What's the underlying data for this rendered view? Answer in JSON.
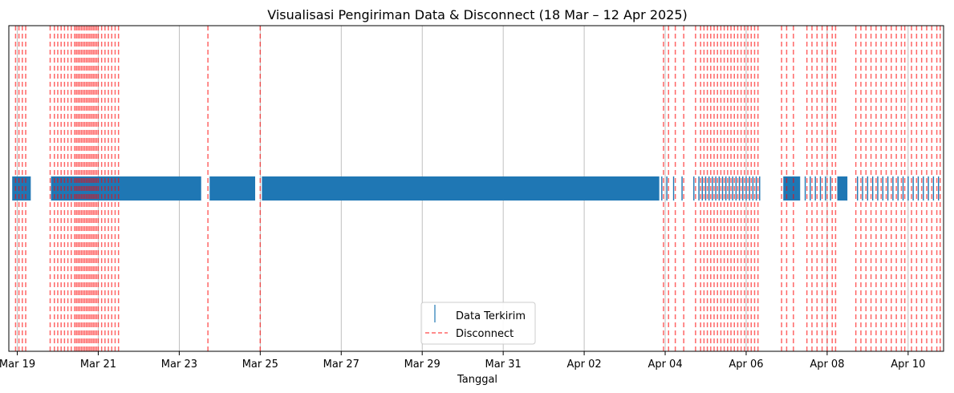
{
  "chart_data": {
    "type": "event-timeline",
    "title": "Visualisasi Pengiriman Data & Disconnect (18 Mar – 12 Apr 2025)",
    "xlabel": "Tanggal",
    "ylabel": "",
    "x_axis": {
      "type": "date",
      "range": [
        "2025-03-18T19:00",
        "2025-04-10T21:00"
      ],
      "ticks": [
        {
          "date": "2025-03-19",
          "label": "Mar 19"
        },
        {
          "date": "2025-03-21",
          "label": "Mar 21"
        },
        {
          "date": "2025-03-23",
          "label": "Mar 23"
        },
        {
          "date": "2025-03-25",
          "label": "Mar 25"
        },
        {
          "date": "2025-03-27",
          "label": "Mar 27"
        },
        {
          "date": "2025-03-29",
          "label": "Mar 29"
        },
        {
          "date": "2025-03-31",
          "label": "Mar 31"
        },
        {
          "date": "2025-04-02",
          "label": "Apr 02"
        },
        {
          "date": "2025-04-04",
          "label": "Apr 04"
        },
        {
          "date": "2025-04-06",
          "label": "Apr 06"
        },
        {
          "date": "2025-04-08",
          "label": "Apr 08"
        },
        {
          "date": "2025-04-10",
          "label": "Apr 10"
        }
      ]
    },
    "grid": {
      "x": true,
      "y": false
    },
    "legend": {
      "placement": "lower center",
      "entries": [
        {
          "label": "Data Terkirim",
          "marker": "vertical-line",
          "color": "#1f77b4"
        },
        {
          "label": "Disconnect",
          "marker": "dashed-line",
          "color": "#ff0000"
        }
      ]
    },
    "series": [
      {
        "name": "Data Terkirim",
        "color": "#1f77b4",
        "mark": "vertical event marker",
        "active_periods": [
          [
            "2025-03-18T21:00",
            "2025-03-19T08:00"
          ],
          [
            "2025-03-19T20:00",
            "2025-03-23T13:00"
          ],
          [
            "2025-03-23T18:00",
            "2025-03-24T21:00"
          ],
          [
            "2025-03-25T01:00",
            "2025-04-03T20:30"
          ],
          [
            "2025-04-06T22:00",
            "2025-04-07T08:00"
          ],
          [
            "2025-04-08T06:00",
            "2025-04-08T12:00"
          ]
        ],
        "sparse_points": [
          "2025-04-03T22:00",
          "2025-04-04T01:00",
          "2025-04-04T05:00",
          "2025-04-04T10:00",
          "2025-04-04T17:00",
          "2025-04-04T20:00",
          "2025-04-04T22:00",
          "2025-04-05T00:00",
          "2025-04-05T02:00",
          "2025-04-05T04:00",
          "2025-04-05T06:00",
          "2025-04-05T08:00",
          "2025-04-05T10:00",
          "2025-04-05T12:00",
          "2025-04-05T14:00",
          "2025-04-05T16:00",
          "2025-04-05T18:00",
          "2025-04-05T20:00",
          "2025-04-05T22:00",
          "2025-04-06T00:00",
          "2025-04-06T02:00",
          "2025-04-06T04:00",
          "2025-04-06T06:00",
          "2025-04-06T08:00",
          "2025-04-07T11:00",
          "2025-04-07T14:00",
          "2025-04-07T17:00",
          "2025-04-07T20:00",
          "2025-04-07T23:00",
          "2025-04-08T02:00",
          "2025-04-08T18:00",
          "2025-04-08T21:00",
          "2025-04-09T00:00",
          "2025-04-09T03:00",
          "2025-04-09T06:00",
          "2025-04-09T09:00",
          "2025-04-09T12:00",
          "2025-04-09T15:00",
          "2025-04-09T18:00",
          "2025-04-09T21:00",
          "2025-04-10T00:00",
          "2025-04-10T03:00",
          "2025-04-10T06:00",
          "2025-04-10T09:00",
          "2025-04-10T12:00",
          "2025-04-10T15:00",
          "2025-04-10T18:00"
        ]
      },
      {
        "name": "Disconnect",
        "color": "#ff0000",
        "mark": "vertical dashed line",
        "events": [
          "2025-03-18T23:00",
          "2025-03-19T01:00",
          "2025-03-19T03:00",
          "2025-03-19T05:00",
          "2025-03-19T19:30",
          "2025-03-19T22:00",
          "2025-03-20T00:00",
          "2025-03-20T02:00",
          "2025-03-20T04:00",
          "2025-03-20T06:00",
          "2025-03-20T08:00",
          "2025-03-20T10:00",
          "2025-03-20T11:00",
          "2025-03-20T12:00",
          "2025-03-20T13:00",
          "2025-03-20T14:00",
          "2025-03-20T15:00",
          "2025-03-20T16:00",
          "2025-03-20T17:00",
          "2025-03-20T18:00",
          "2025-03-20T19:00",
          "2025-03-20T20:00",
          "2025-03-20T21:00",
          "2025-03-20T22:00",
          "2025-03-20T23:00",
          "2025-03-21T00:00",
          "2025-03-21T02:00",
          "2025-03-21T04:00",
          "2025-03-21T06:00",
          "2025-03-21T08:00",
          "2025-03-21T10:00",
          "2025-03-21T12:00",
          "2025-03-23T17:00",
          "2025-03-25T00:00",
          "2025-04-03T23:00",
          "2025-04-04T02:00",
          "2025-04-04T06:00",
          "2025-04-04T11:00",
          "2025-04-04T18:00",
          "2025-04-04T21:00",
          "2025-04-04T23:00",
          "2025-04-05T01:00",
          "2025-04-05T03:00",
          "2025-04-05T05:00",
          "2025-04-05T07:00",
          "2025-04-05T09:00",
          "2025-04-05T11:00",
          "2025-04-05T13:00",
          "2025-04-05T15:00",
          "2025-04-05T17:00",
          "2025-04-05T19:00",
          "2025-04-05T21:00",
          "2025-04-05T23:00",
          "2025-04-06T01:00",
          "2025-04-06T03:00",
          "2025-04-06T05:00",
          "2025-04-06T07:00",
          "2025-04-06T21:00",
          "2025-04-07T00:00",
          "2025-04-07T04:00",
          "2025-04-07T12:00",
          "2025-04-07T15:00",
          "2025-04-07T18:00",
          "2025-04-07T21:00",
          "2025-04-08T00:00",
          "2025-04-08T03:00",
          "2025-04-08T05:00",
          "2025-04-08T17:00",
          "2025-04-08T20:00",
          "2025-04-08T23:00",
          "2025-04-09T02:00",
          "2025-04-09T05:00",
          "2025-04-09T08:00",
          "2025-04-09T11:00",
          "2025-04-09T14:00",
          "2025-04-09T17:00",
          "2025-04-09T20:00",
          "2025-04-09T22:00",
          "2025-04-10T02:00",
          "2025-04-10T05:00",
          "2025-04-10T08:00",
          "2025-04-10T11:00",
          "2025-04-10T14:00",
          "2025-04-10T17:00",
          "2025-04-10T19:00"
        ]
      }
    ]
  }
}
